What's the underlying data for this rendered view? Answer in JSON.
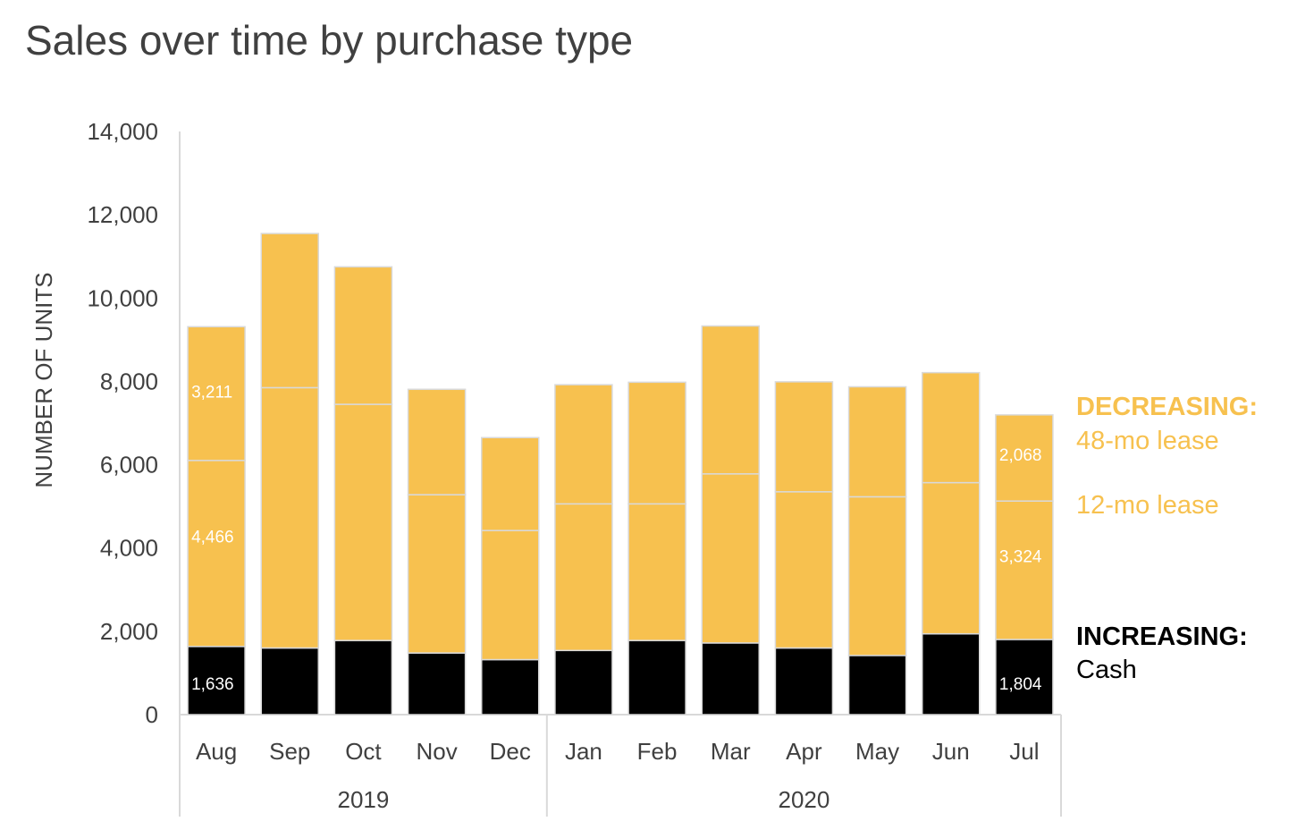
{
  "title": "Sales over time by purchase type",
  "colors": {
    "cash": "#000000",
    "lease": "#F7C14F",
    "text": "#404040",
    "axis": "#D9D9D9",
    "segment_border": "#D9D9D9"
  },
  "chart_data": {
    "type": "bar",
    "stacked": true,
    "title": "Sales over time by purchase type",
    "xlabel": "",
    "ylabel": "NUMBER OF UNITS",
    "ylim": [
      0,
      14000
    ],
    "yticks": [
      "0",
      "2,000",
      "4,000",
      "6,000",
      "8,000",
      "10,000",
      "12,000",
      "14,000"
    ],
    "grid": false,
    "categories": [
      "Aug",
      "Sep",
      "Oct",
      "Nov",
      "Dec",
      "Jan",
      "Feb",
      "Mar",
      "Apr",
      "May",
      "Jun",
      "Jul"
    ],
    "groups": [
      {
        "label": "2019",
        "categories": [
          "Aug",
          "Sep",
          "Oct",
          "Nov",
          "Dec"
        ]
      },
      {
        "label": "2020",
        "categories": [
          "Jan",
          "Feb",
          "Mar",
          "Apr",
          "May",
          "Jun",
          "Jul"
        ]
      }
    ],
    "series": [
      {
        "values": [
          1636,
          1600,
          1780,
          1480,
          1320,
          1540,
          1780,
          1720,
          1600,
          1420,
          1940,
          1804
        ]
      },
      {
        "values": [
          4466,
          6250,
          5670,
          3800,
          3100,
          3520,
          3280,
          4060,
          3750,
          3810,
          3630,
          3324
        ]
      },
      {
        "values": [
          3211,
          3700,
          3300,
          2530,
          2230,
          2860,
          2920,
          3550,
          2640,
          2640,
          2640,
          2068
        ]
      }
    ],
    "data_labels": [
      {
        "category": "Aug",
        "series": 0,
        "text": "1,636"
      },
      {
        "category": "Aug",
        "series": 1,
        "text": "4,466"
      },
      {
        "category": "Aug",
        "series": 2,
        "text": "3,211"
      },
      {
        "category": "Jul",
        "series": 0,
        "text": "1,804"
      },
      {
        "category": "Jul",
        "series": 1,
        "text": "3,324"
      },
      {
        "category": "Jul",
        "series": 2,
        "text": "2,068"
      }
    ],
    "annotations": [
      {
        "text": "DECREASING:",
        "style": "bold",
        "color": "lease"
      },
      {
        "text": "48-mo lease",
        "style": "normal",
        "color": "lease"
      },
      {
        "text": "12-mo lease",
        "style": "normal",
        "color": "lease"
      },
      {
        "text": "INCREASING:",
        "style": "bold",
        "color": "cash"
      },
      {
        "text": "Cash",
        "style": "normal",
        "color": "cash"
      }
    ]
  }
}
